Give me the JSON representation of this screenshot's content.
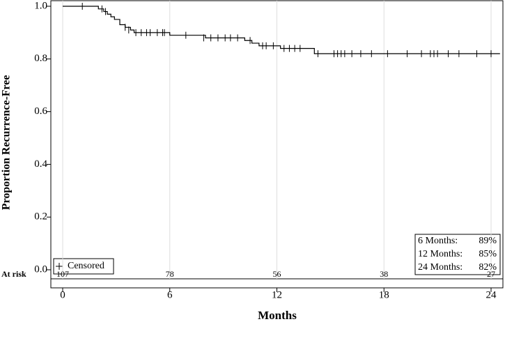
{
  "chart_data": {
    "type": "step",
    "x_label": "Months",
    "y_label": "Proportion Recurrence-Free",
    "x": [
      0,
      2.0,
      2.3,
      2.5,
      2.7,
      2.9,
      3.2,
      3.5,
      3.8,
      4.0,
      6.0,
      8.0,
      10.2,
      10.6,
      11.0,
      12.2,
      14.1,
      24.5
    ],
    "values": [
      1.0,
      0.99,
      0.98,
      0.97,
      0.96,
      0.95,
      0.93,
      0.92,
      0.91,
      0.9,
      0.89,
      0.88,
      0.87,
      0.86,
      0.85,
      0.84,
      0.82,
      0.82
    ],
    "color": "#000000",
    "censored": {
      "name": "Censored",
      "x": [
        1.1,
        2.2,
        2.4,
        3.5,
        3.7,
        4.1,
        4.4,
        4.7,
        4.9,
        5.3,
        5.6,
        5.7,
        6.9,
        7.9,
        8.3,
        8.7,
        9.1,
        9.4,
        9.8,
        10.5,
        11.2,
        11.4,
        11.8,
        12.4,
        12.7,
        13.0,
        13.3,
        14.3,
        15.2,
        15.4,
        15.6,
        15.8,
        16.2,
        16.7,
        17.3,
        18.2,
        19.3,
        20.1,
        20.6,
        20.8,
        21.0,
        21.6,
        22.2,
        23.2,
        24.0
      ],
      "values": [
        1.0,
        0.99,
        0.98,
        0.92,
        0.91,
        0.9,
        0.9,
        0.9,
        0.9,
        0.9,
        0.9,
        0.9,
        0.89,
        0.88,
        0.88,
        0.88,
        0.88,
        0.88,
        0.88,
        0.87,
        0.85,
        0.85,
        0.85,
        0.84,
        0.84,
        0.84,
        0.84,
        0.82,
        0.82,
        0.82,
        0.82,
        0.82,
        0.82,
        0.82,
        0.82,
        0.82,
        0.82,
        0.82,
        0.82,
        0.82,
        0.82,
        0.82,
        0.82,
        0.82,
        0.82
      ]
    },
    "xlim": [
      -1.8,
      24.8
    ],
    "xticks": [
      0,
      6,
      12,
      18,
      24
    ],
    "ylim": [
      0,
      1.0
    ],
    "yticks": [
      {
        "value": 0,
        "label": "0.0"
      },
      0.2,
      0.4,
      0.6,
      0.8,
      {
        "value": 1,
        "label": "1.0"
      }
    ],
    "grid": true,
    "at_risk_label": "At risk",
    "at_risk": [
      107,
      78,
      56,
      38,
      27
    ],
    "annotations": [
      {
        "label": "6 Months:",
        "value": "89%"
      },
      {
        "label": "12 Months:",
        "value": "85%"
      },
      {
        "label": "24 Months:",
        "value": "82%"
      }
    ]
  }
}
